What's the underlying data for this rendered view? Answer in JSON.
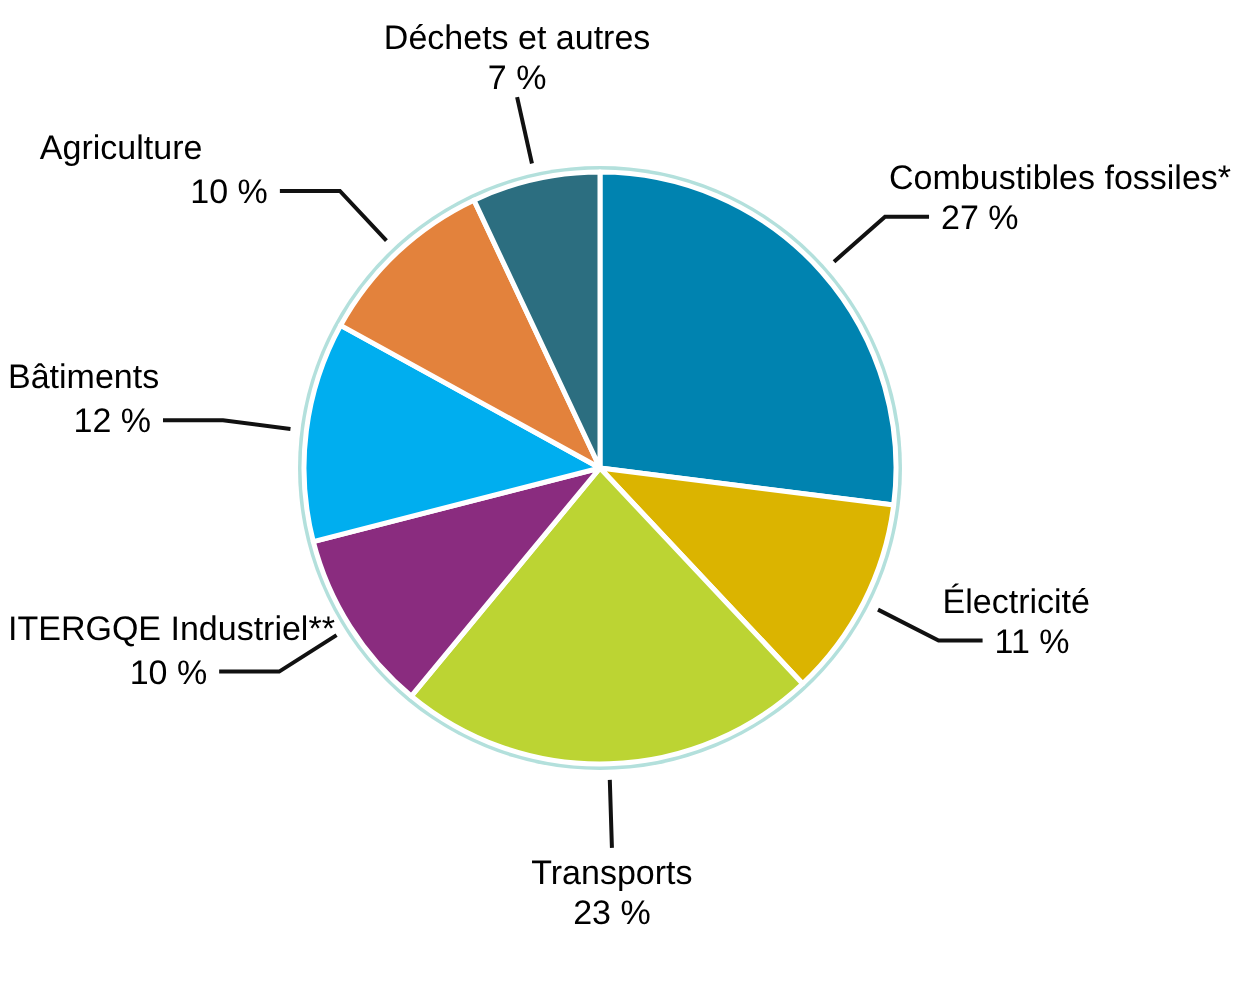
{
  "chart_data": {
    "type": "pie",
    "categories": [
      "Combustibles fossiles*",
      "Électricité",
      "Transports",
      "ITERGQE Industriel**",
      "Bâtiments",
      "Agriculture",
      "Déchets et autres"
    ],
    "values": [
      27,
      11,
      23,
      10,
      12,
      10,
      7
    ],
    "colors": [
      "#0083b0",
      "#dbb400",
      "#bcd433",
      "#8a2c7f",
      "#00aeef",
      "#e3823c",
      "#2c6e80"
    ],
    "value_labels": [
      "27 %",
      "11 %",
      "23 %",
      "10 %",
      "12 %",
      "10 %",
      "7 %"
    ]
  }
}
